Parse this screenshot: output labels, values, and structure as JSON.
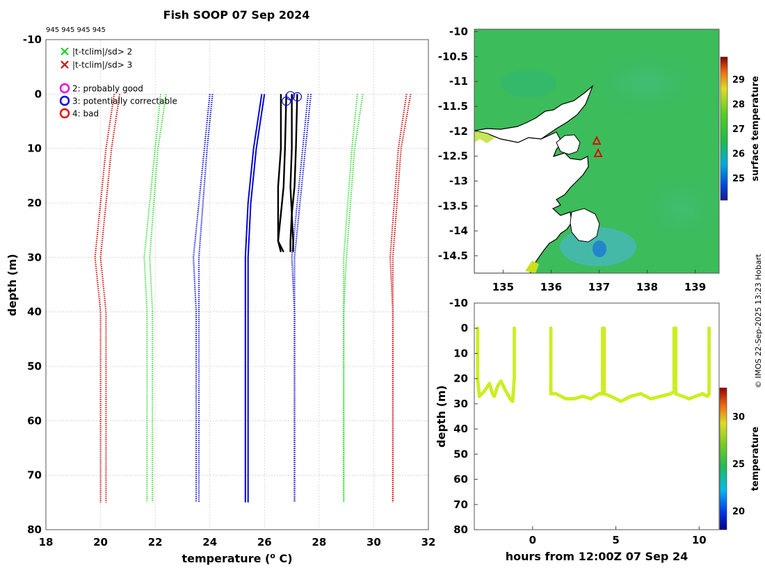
{
  "title": "Fish SOOP 07 Sep 2024",
  "profile_ids": "945 945 945 945",
  "copyright": "© IMOS 22-Sep-2025 13:23 Hobart",
  "chart_data": [
    {
      "type": "line",
      "name": "profile",
      "xlabel": "temperature (° C)",
      "ylabel": "depth (m)",
      "xlim": [
        18,
        32
      ],
      "ylim": [
        80,
        -10
      ],
      "xticks": [
        18,
        20,
        22,
        24,
        26,
        28,
        30,
        32
      ],
      "yticks": [
        -10,
        0,
        10,
        20,
        30,
        40,
        50,
        60,
        70,
        80
      ],
      "legend": [
        {
          "label": "|t-tclim|/sd> 2",
          "marker": "x",
          "color": "#22cc22"
        },
        {
          "label": "|t-tclim|/sd> 3",
          "marker": "x",
          "color": "#dd0000"
        },
        {
          "label": "2: probably good",
          "marker": "o",
          "color": "#ee00ee"
        },
        {
          "label": "3: potentially correctable",
          "marker": "o",
          "color": "#0000ee"
        },
        {
          "label": "4: bad",
          "marker": "o",
          "color": "#ee0000"
        }
      ],
      "climatology": [
        {
          "name": "-3sd a",
          "color": "#cc0000",
          "style": "dotted",
          "x": [
            20.5,
            20.2,
            19.8,
            20.0,
            20.0,
            20.0
          ],
          "depth": [
            0,
            10,
            30,
            40,
            60,
            75
          ]
        },
        {
          "name": "-3sd b",
          "color": "#cc0000",
          "style": "dotted",
          "x": [
            20.7,
            20.4,
            20.0,
            20.2,
            20.2,
            20.2
          ],
          "depth": [
            0,
            10,
            30,
            40,
            60,
            75
          ]
        },
        {
          "name": "-2sd a",
          "color": "#33dd33",
          "style": "dotted",
          "x": [
            22.2,
            22.0,
            21.6,
            21.7,
            21.7,
            21.7
          ],
          "depth": [
            0,
            10,
            30,
            40,
            60,
            75
          ]
        },
        {
          "name": "-2sd b",
          "color": "#33dd33",
          "style": "dotted",
          "x": [
            22.4,
            22.1,
            21.8,
            21.9,
            21.9,
            21.9
          ],
          "depth": [
            0,
            10,
            30,
            40,
            60,
            75
          ]
        },
        {
          "name": "-1sd a",
          "color": "#0000cc",
          "style": "dotted",
          "x": [
            24.0,
            23.8,
            23.4,
            23.5,
            23.5,
            23.5
          ],
          "depth": [
            0,
            10,
            30,
            40,
            60,
            75
          ]
        },
        {
          "name": "-1sd b",
          "color": "#0000cc",
          "style": "dotted",
          "x": [
            24.1,
            23.9,
            23.6,
            23.6,
            23.6,
            23.6
          ],
          "depth": [
            0,
            10,
            30,
            40,
            60,
            75
          ]
        },
        {
          "name": "+1sd a",
          "color": "#0000cc",
          "style": "dotted",
          "x": [
            27.6,
            27.4,
            27.0,
            27.1,
            27.1,
            27.1
          ],
          "depth": [
            0,
            10,
            30,
            40,
            60,
            75
          ]
        },
        {
          "name": "+1sd b",
          "color": "#0000cc",
          "style": "dotted",
          "x": [
            27.7,
            27.5,
            27.1,
            27.1,
            27.1,
            27.1
          ],
          "depth": [
            0,
            10,
            30,
            40,
            60,
            75
          ]
        },
        {
          "name": "+2sd a",
          "color": "#33dd33",
          "style": "dotted",
          "x": [
            29.4,
            29.2,
            28.9,
            28.9,
            28.9,
            28.9
          ],
          "depth": [
            0,
            10,
            30,
            40,
            60,
            75
          ]
        },
        {
          "name": "+2sd b",
          "color": "#33dd33",
          "style": "dotted",
          "x": [
            29.6,
            29.3,
            29.0,
            28.9,
            28.9,
            28.9
          ],
          "depth": [
            0,
            10,
            30,
            40,
            60,
            75
          ]
        },
        {
          "name": "+3sd a",
          "color": "#cc0000",
          "style": "dotted",
          "x": [
            31.2,
            30.9,
            30.6,
            30.7,
            30.7,
            30.7
          ],
          "depth": [
            0,
            10,
            30,
            40,
            60,
            75
          ]
        },
        {
          "name": "+3sd b",
          "color": "#cc0000",
          "style": "dotted",
          "x": [
            31.35,
            31.0,
            30.7,
            30.7,
            30.7,
            30.7
          ],
          "depth": [
            0,
            10,
            30,
            40,
            60,
            75
          ]
        },
        {
          "name": "climatology mean a",
          "color": "#0000dd",
          "style": "solid",
          "x": [
            25.9,
            25.6,
            25.4,
            25.3,
            25.3,
            25.3,
            25.3
          ],
          "depth": [
            0,
            10,
            20,
            30,
            40,
            60,
            75
          ]
        },
        {
          "name": "climatology mean b",
          "color": "#0000dd",
          "style": "solid",
          "x": [
            26.0,
            25.7,
            25.5,
            25.4,
            25.4,
            25.4,
            25.4
          ],
          "depth": [
            0,
            10,
            20,
            30,
            40,
            60,
            75
          ]
        }
      ],
      "observed": [
        {
          "name": "cast 1",
          "color": "#000000",
          "x": [
            26.6,
            26.6,
            26.5,
            26.5,
            26.5,
            26.6
          ],
          "depth": [
            0,
            10,
            17,
            22,
            27,
            29
          ]
        },
        {
          "name": "cast 2",
          "color": "#000000",
          "x": [
            26.8,
            26.75,
            26.7,
            26.6,
            26.5,
            26.7
          ],
          "depth": [
            0,
            10,
            17,
            22,
            27,
            29
          ]
        },
        {
          "name": "cast 3",
          "color": "#000000",
          "x": [
            27.0,
            27.0,
            26.95,
            27.0,
            26.95,
            26.95
          ],
          "depth": [
            0,
            10,
            17,
            22,
            27,
            29
          ]
        },
        {
          "name": "cast 4",
          "color": "#000000",
          "x": [
            27.2,
            27.15,
            27.1,
            27.0,
            27.05,
            27.05
          ],
          "depth": [
            0,
            10,
            17,
            22,
            27,
            29
          ]
        }
      ],
      "flags": [
        {
          "x": 26.8,
          "depth": 1.3,
          "flag": 3
        },
        {
          "x": 26.95,
          "depth": 0.3,
          "flag": 3
        },
        {
          "x": 27.2,
          "depth": 0.5,
          "flag": 3
        }
      ]
    },
    {
      "type": "heatmap",
      "name": "map",
      "xlim": [
        134.4,
        139.5
      ],
      "ylim": [
        -14.85,
        -9.95
      ],
      "xticks": [
        135,
        136,
        137,
        138,
        139
      ],
      "yticks": [
        -10,
        -10.5,
        -11,
        -11.5,
        -12,
        -12.5,
        -13,
        -13.5,
        -14,
        -14.5
      ],
      "colorbar": {
        "label": "surface temperature",
        "range": [
          24.1,
          29.9
        ],
        "ticks": [
          25,
          26,
          27,
          28,
          29
        ]
      },
      "track": [
        {
          "lon": 136.95,
          "lat": -12.2
        },
        {
          "lon": 136.98,
          "lat": -12.45
        }
      ]
    },
    {
      "type": "scatter",
      "name": "timeseries",
      "xlabel": "hours from 12:00Z 07 Sep 24",
      "ylabel": "depth (m)",
      "xlim": [
        -3.5,
        11.2
      ],
      "ylim": [
        80,
        -10
      ],
      "xticks": [
        0,
        5,
        10
      ],
      "yticks": [
        -10,
        0,
        10,
        20,
        30,
        40,
        50,
        60,
        70,
        80
      ],
      "colorbar": {
        "label": "temperature",
        "range": [
          18,
          33
        ],
        "ticks": [
          20,
          25,
          30
        ]
      },
      "marker_color": "#ccee22",
      "casts": [
        {
          "x": [
            -3.3,
            -3.3,
            -3.2,
            -2.9,
            -2.6,
            -2.4,
            -2.3,
            -2.1,
            -1.9,
            -1.6,
            -1.35,
            -1.2,
            -1.1,
            -1.1
          ],
          "depth": [
            0,
            20,
            27,
            25,
            22,
            26,
            27,
            23,
            21,
            25,
            28,
            29,
            20,
            0
          ]
        },
        {
          "x": [
            1.1,
            1.1,
            1.4,
            2.0,
            2.5,
            3.0,
            3.5,
            4.0,
            4.2,
            4.2
          ],
          "depth": [
            0,
            26,
            26,
            28,
            28,
            27,
            28,
            26,
            26,
            0
          ]
        },
        {
          "x": [
            4.3,
            4.3,
            4.7,
            5.3,
            5.9,
            6.5,
            7.1,
            7.7,
            8.3,
            8.5,
            8.5
          ],
          "depth": [
            0,
            26,
            27,
            29,
            27,
            26,
            28,
            27,
            26,
            25,
            0
          ]
        },
        {
          "x": [
            8.6,
            8.6,
            9.0,
            9.4,
            9.8,
            10.2,
            10.5,
            10.6,
            10.6
          ],
          "depth": [
            0,
            26,
            27,
            28,
            27,
            26,
            27,
            26,
            0
          ]
        }
      ]
    }
  ]
}
